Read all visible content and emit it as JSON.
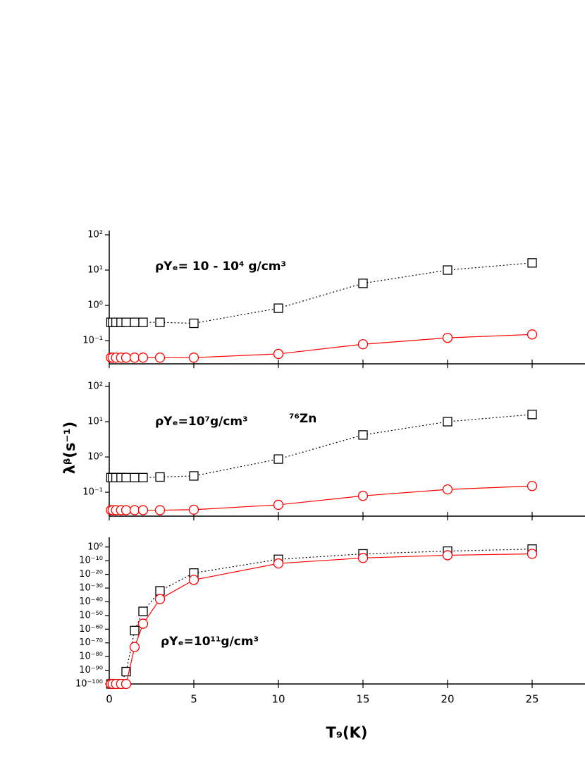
{
  "chart_data": [
    {
      "type": "line",
      "log_scale": true,
      "annotation": "ρYₑ= 10 - 10⁴ g/cm³",
      "x": [
        0.1,
        0.2,
        0.4,
        0.7,
        1,
        1.5,
        2,
        3,
        5,
        10,
        15,
        20,
        25
      ],
      "series": [
        {
          "color": "#000000",
          "line": "dotted",
          "marker": "square",
          "values": [
            0.33,
            0.33,
            0.33,
            0.33,
            0.33,
            0.33,
            0.33,
            0.33,
            0.31,
            0.83,
            4.2,
            10,
            16
          ]
        },
        {
          "color": "#ff0000",
          "line": "solid",
          "marker": "circle",
          "values": [
            0.033,
            0.033,
            0.033,
            0.033,
            0.033,
            0.033,
            0.033,
            0.033,
            0.033,
            0.042,
            0.079,
            0.12,
            0.15
          ]
        }
      ],
      "ylim": [
        0.022,
        100
      ],
      "yticks": [
        {
          "value": 0.1,
          "label": "10⁻¹"
        },
        {
          "value": 1,
          "label": "10⁰"
        },
        {
          "value": 10,
          "label": "10¹"
        },
        {
          "value": 100,
          "label": "10²"
        }
      ]
    },
    {
      "type": "line",
      "log_scale": true,
      "annotation": "ρYₑ=10⁷g/cm³",
      "nucleus": "⁷⁶Zn",
      "ylabel": "λᵝ(s⁻¹)",
      "x": [
        0.1,
        0.2,
        0.4,
        0.7,
        1,
        1.5,
        2,
        3,
        5,
        10,
        15,
        20,
        25
      ],
      "series": [
        {
          "color": "#000000",
          "line": "dotted",
          "marker": "square",
          "values": [
            0.26,
            0.26,
            0.26,
            0.26,
            0.26,
            0.26,
            0.26,
            0.27,
            0.29,
            0.87,
            4.2,
            10,
            16
          ]
        },
        {
          "color": "#ff0000",
          "line": "solid",
          "marker": "circle",
          "values": [
            0.031,
            0.031,
            0.031,
            0.031,
            0.031,
            0.031,
            0.031,
            0.031,
            0.032,
            0.044,
            0.079,
            0.12,
            0.15
          ]
        }
      ],
      "ylim": [
        0.021,
        100
      ],
      "yticks": [
        {
          "value": 0.1,
          "label": "10⁻¹"
        },
        {
          "value": 1,
          "label": "10⁰"
        },
        {
          "value": 10,
          "label": "10¹"
        },
        {
          "value": 100,
          "label": "10²"
        }
      ]
    },
    {
      "type": "line",
      "log_scale": true,
      "annotation": "ρYₑ=10¹¹g/cm³",
      "xlabel": "T₉(K)",
      "x": [
        0.1,
        0.2,
        0.4,
        0.7,
        1,
        1.5,
        2,
        3,
        5,
        10,
        15,
        20,
        25
      ],
      "series": [
        {
          "color": "#000000",
          "line": "dotted",
          "marker": "square",
          "values": [
            1e-100,
            1e-100,
            1e-100,
            1e-100,
            1e-91,
            1e-61,
            1e-47,
            1e-32,
            1e-19,
            1e-09,
            1e-05,
            0.001,
            0.03
          ]
        },
        {
          "color": "#ff0000",
          "line": "solid",
          "marker": "circle",
          "values": [
            1e-100,
            1e-100,
            1e-100,
            1e-100,
            1e-100,
            1e-73,
            1e-56,
            1e-38,
            1e-24,
            1e-12,
            1e-08,
            1e-06,
            1e-05
          ]
        }
      ],
      "xlim": [
        0,
        28
      ],
      "xticks": [
        0,
        5,
        10,
        15,
        20,
        25
      ],
      "ylim": [
        1e-100,
        10000
      ],
      "yticks": [
        {
          "value": 1e-100,
          "label": "10⁻¹⁰⁰"
        },
        {
          "value": 1e-90,
          "label": "10⁻⁹⁰"
        },
        {
          "value": 1e-80,
          "label": "10⁻⁸⁰"
        },
        {
          "value": 1e-70,
          "label": "10⁻⁷⁰"
        },
        {
          "value": 1e-60,
          "label": "10⁻⁶⁰"
        },
        {
          "value": 1e-50,
          "label": "10⁻⁵⁰"
        },
        {
          "value": 1e-40,
          "label": "10⁻⁴⁰"
        },
        {
          "value": 1e-30,
          "label": "10⁻³⁰"
        },
        {
          "value": 1e-20,
          "label": "10⁻²⁰"
        },
        {
          "value": 1e-10,
          "label": "10⁻¹⁰"
        },
        {
          "value": 1,
          "label": "10⁰"
        }
      ]
    }
  ]
}
